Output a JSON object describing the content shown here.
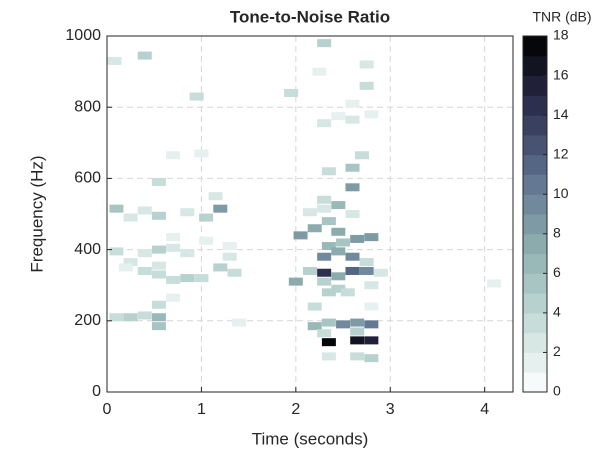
{
  "chart_data": {
    "type": "heatmap",
    "title": "Tone-to-Noise Ratio",
    "xlabel": "Time (seconds)",
    "ylabel": "Frequency (Hz)",
    "colorbar_label": "TNR (dB)",
    "xlim": [
      0,
      4.3
    ],
    "xticks": [
      0,
      1,
      2,
      3,
      4
    ],
    "ylim": [
      0,
      1000
    ],
    "yticks": [
      0,
      200,
      400,
      600,
      800,
      1000
    ],
    "clim": [
      0,
      18
    ],
    "cticks": [
      0,
      2,
      4,
      6,
      8,
      10,
      12,
      14,
      16,
      18
    ],
    "colormap": [
      "#ffffff",
      "#c4dcd8",
      "#8fb0b0",
      "#5f7390",
      "#2e3050",
      "#000000"
    ],
    "grid": true,
    "x": [
      0.08,
      0.4,
      0.95,
      0.1,
      0.25,
      0.4,
      0.55,
      0.85,
      1.05,
      1.2,
      1.15,
      0.55,
      0.7,
      1.0,
      0.1,
      0.25,
      0.4,
      0.55,
      0.7,
      0.7,
      0.55,
      0.85,
      0.2,
      0.4,
      0.55,
      0.7,
      0.85,
      1.0,
      1.2,
      1.35,
      1.05,
      1.3,
      1.3,
      0.1,
      0.25,
      0.4,
      0.55,
      0.55,
      0.55,
      0.7,
      1.4,
      1.95,
      2.3,
      2.25,
      2.3,
      2.45,
      2.6,
      2.6,
      2.75,
      2.75,
      2.8,
      2.05,
      2.2,
      2.35,
      2.45,
      2.35,
      2.5,
      2.65,
      2.8,
      2.35,
      2.3,
      2.45,
      2.6,
      2.6,
      2.7,
      2.6,
      2.15,
      2.3,
      2.3,
      2.45,
      2.6,
      2.75,
      2.9,
      2.0,
      2.15,
      2.3,
      2.45,
      2.6,
      2.75,
      2.3,
      2.45,
      2.55,
      2.35,
      2.8,
      2.8,
      2.2,
      2.2,
      2.35,
      2.5,
      2.65,
      2.8,
      2.3,
      2.65,
      2.35,
      2.65,
      2.8,
      2.35,
      2.65,
      2.8,
      4.1
    ],
    "y": [
      930,
      945,
      830,
      515,
      490,
      510,
      495,
      505,
      490,
      515,
      550,
      590,
      665,
      670,
      395,
      365,
      390,
      355,
      405,
      435,
      400,
      390,
      350,
      340,
      330,
      315,
      320,
      320,
      350,
      335,
      425,
      380,
      410,
      210,
      210,
      215,
      210,
      185,
      245,
      265,
      195,
      840,
      980,
      900,
      755,
      775,
      765,
      810,
      920,
      860,
      780,
      440,
      460,
      480,
      450,
      410,
      420,
      430,
      435,
      620,
      540,
      525,
      630,
      575,
      665,
      500,
      505,
      515,
      380,
      395,
      380,
      365,
      335,
      310,
      340,
      335,
      325,
      340,
      340,
      310,
      290,
      280,
      280,
      300,
      240,
      240,
      185,
      195,
      190,
      195,
      190,
      165,
      170,
      140,
      145,
      145,
      100,
      100,
      95,
      305
    ],
    "values": [
      2,
      4,
      3,
      5,
      2,
      2,
      4,
      2,
      4,
      8,
      2,
      3,
      1,
      1,
      3,
      2,
      2,
      2,
      2,
      1,
      4,
      2,
      1,
      3,
      3,
      3,
      4,
      3,
      4,
      3,
      1,
      2,
      1,
      3,
      4,
      3,
      6,
      5,
      3,
      1,
      1,
      3,
      4,
      1,
      2,
      1,
      2,
      1,
      2,
      3,
      1,
      8,
      7,
      5,
      7,
      6,
      5,
      8,
      8,
      3,
      3,
      6,
      5,
      8,
      3,
      2,
      2,
      2,
      9,
      7,
      9,
      3,
      2,
      7,
      4,
      14,
      7,
      11,
      9,
      4,
      4,
      3,
      4,
      2,
      1,
      3,
      6,
      5,
      9,
      8,
      10,
      3,
      4,
      18,
      16,
      15,
      2,
      3,
      4,
      1
    ]
  }
}
